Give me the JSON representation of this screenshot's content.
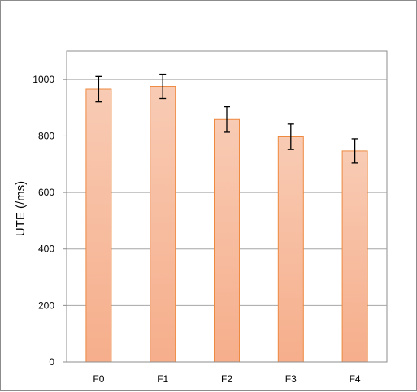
{
  "chart_data": {
    "type": "bar",
    "title": "",
    "xlabel": "",
    "ylabel": "UTE (/ms)",
    "categories": [
      "F0",
      "F1",
      "F2",
      "F3",
      "F4"
    ],
    "values": [
      965,
      975,
      858,
      797,
      747
    ],
    "error": [
      45,
      43,
      45,
      45,
      43
    ],
    "ylim": [
      0,
      1100
    ],
    "yticks": [
      0,
      200,
      400,
      600,
      800,
      1000
    ],
    "grid": true,
    "legend": "none",
    "colors": {
      "bar_fill_top": "#f8cbb4",
      "bar_fill_bottom": "#f6ae8b",
      "bar_stroke": "#ee8940",
      "grid": "#a6a6a6",
      "axis": "#8c8c8c",
      "error_bar": "#000000"
    }
  }
}
